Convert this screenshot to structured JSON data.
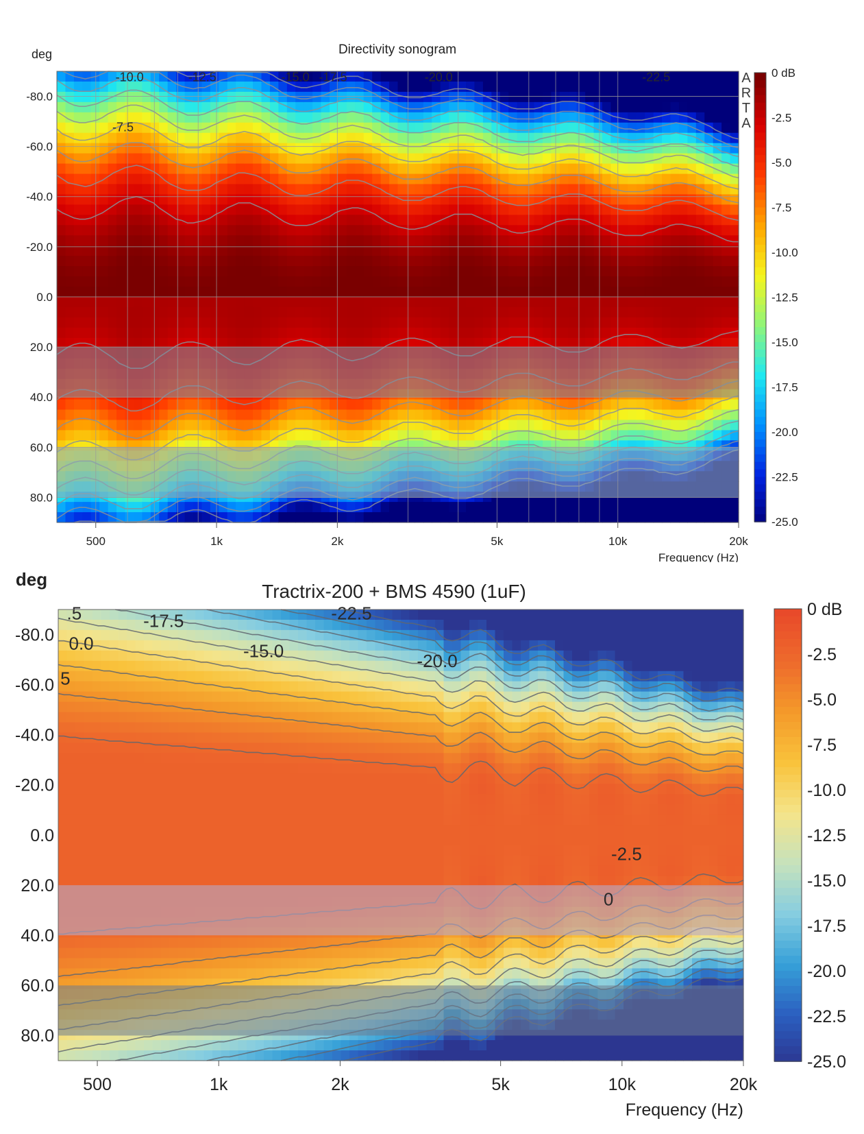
{
  "chart_data": [
    {
      "type": "heatmap",
      "title": "Directivity sonogram",
      "ylabel": "deg",
      "xlabel": "Frequency (Hz)",
      "x_scale": "log",
      "xlim": [
        400,
        20000
      ],
      "ylim": [
        -90,
        90
      ],
      "x_ticks": [
        {
          "value": 500,
          "label": "500"
        },
        {
          "value": 1000,
          "label": "1k"
        },
        {
          "value": 2000,
          "label": "2k"
        },
        {
          "value": 5000,
          "label": "5k"
        },
        {
          "value": 10000,
          "label": "10k"
        },
        {
          "value": 20000,
          "label": "20k"
        }
      ],
      "y_ticks": [
        {
          "value": -80,
          "label": "-80.0"
        },
        {
          "value": -60,
          "label": "-60.0"
        },
        {
          "value": -40,
          "label": "-40.0"
        },
        {
          "value": -20,
          "label": "-20.0"
        },
        {
          "value": 0,
          "label": "0.0"
        },
        {
          "value": 20,
          "label": "20.0"
        },
        {
          "value": 40,
          "label": "40.0"
        },
        {
          "value": 60,
          "label": "60.0"
        },
        {
          "value": 80,
          "label": "80.0"
        }
      ],
      "colorbar": {
        "range": [
          -25,
          0
        ],
        "labels": [
          "0 dB",
          "-2.5",
          "-5.0",
          "-7.5",
          "-10.0",
          "-12.5",
          "-15.0",
          "-17.5",
          "-20.0",
          "-22.5",
          "-25.0"
        ]
      },
      "contour_labels": [
        {
          "text": "-10.0",
          "freq": 560,
          "deg": -86
        },
        {
          "text": "-12.5",
          "freq": 850,
          "deg": -86
        },
        {
          "text": "-15.0",
          "freq": 1450,
          "deg": -86
        },
        {
          "text": "-17.5",
          "freq": 1800,
          "deg": -86
        },
        {
          "text": "-20.0",
          "freq": 3300,
          "deg": -86
        },
        {
          "text": "-22.5",
          "freq": 11500,
          "deg": -86
        },
        {
          "text": "-7.5",
          "freq": 550,
          "deg": -66
        }
      ],
      "watermark": "ARTA",
      "contour_color": "#8a8f96",
      "colormap": [
        "#00007a",
        "#0022e0",
        "#0090ff",
        "#20e8f0",
        "#8ff57a",
        "#f5f51e",
        "#ffa500",
        "#ff3c00",
        "#d80000",
        "#7a0000"
      ],
      "shading": [
        {
          "from": 20,
          "to": 40,
          "color": "#7a8fa0",
          "opacity": 0.55
        },
        {
          "from": 60,
          "to": 80,
          "color": "#8ea8b8",
          "opacity": 0.6
        }
      ]
    },
    {
      "type": "heatmap",
      "title": "Tractrix-200 + BMS 4590 (1uF)",
      "ylabel": "deg",
      "xlabel": "Frequency (Hz)",
      "x_scale": "log",
      "xlim": [
        400,
        20000
      ],
      "ylim": [
        -90,
        90
      ],
      "x_ticks": [
        {
          "value": 500,
          "label": "500"
        },
        {
          "value": 1000,
          "label": "1k"
        },
        {
          "value": 2000,
          "label": "2k"
        },
        {
          "value": 5000,
          "label": "5k"
        },
        {
          "value": 10000,
          "label": "10k"
        },
        {
          "value": 20000,
          "label": "20k"
        }
      ],
      "y_ticks": [
        {
          "value": -80,
          "label": "-80.0"
        },
        {
          "value": -60,
          "label": "-60.0"
        },
        {
          "value": -40,
          "label": "-40.0"
        },
        {
          "value": -20,
          "label": "-20.0"
        },
        {
          "value": 0,
          "label": "0.0"
        },
        {
          "value": 20,
          "label": "20.0"
        },
        {
          "value": 40,
          "label": "40.0"
        },
        {
          "value": 60,
          "label": "60.0"
        },
        {
          "value": 80,
          "label": "80.0"
        }
      ],
      "colorbar": {
        "range": [
          -25,
          0
        ],
        "labels": [
          "0 dB",
          "-2.5",
          "-5.0",
          "-7.5",
          "-10.0",
          "-12.5",
          "-15.0",
          "-17.5",
          "-20.0",
          "-22.5",
          "-25.0"
        ]
      },
      "contour_labels": [
        {
          "text": ".5",
          "freq": 420,
          "deg": -86
        },
        {
          "text": "-17.5",
          "freq": 650,
          "deg": -83
        },
        {
          "text": "-22.5",
          "freq": 1900,
          "deg": -86
        },
        {
          "text": "0.0",
          "freq": 425,
          "deg": -74
        },
        {
          "text": "-15.0",
          "freq": 1150,
          "deg": -71
        },
        {
          "text": "-20.0",
          "freq": 3100,
          "deg": -67
        },
        {
          "text": "5",
          "freq": 405,
          "deg": -60
        },
        {
          "text": "-2.5",
          "freq": 9400,
          "deg": 10
        },
        {
          "text": "0",
          "freq": 9000,
          "deg": 28
        }
      ],
      "contour_color": "#5f6670",
      "colormap": [
        "#2c3690",
        "#2b5fc0",
        "#36a0d8",
        "#86cde0",
        "#c6e2bc",
        "#f4e48a",
        "#f9c33c",
        "#f49a2a",
        "#ee6b2c",
        "#e84a2a"
      ],
      "shading": [
        {
          "from": 20,
          "to": 40,
          "color": "#b8a8c8",
          "opacity": 0.6
        },
        {
          "from": 60,
          "to": 80,
          "color": "#6e7c90",
          "opacity": 0.55
        }
      ]
    }
  ]
}
